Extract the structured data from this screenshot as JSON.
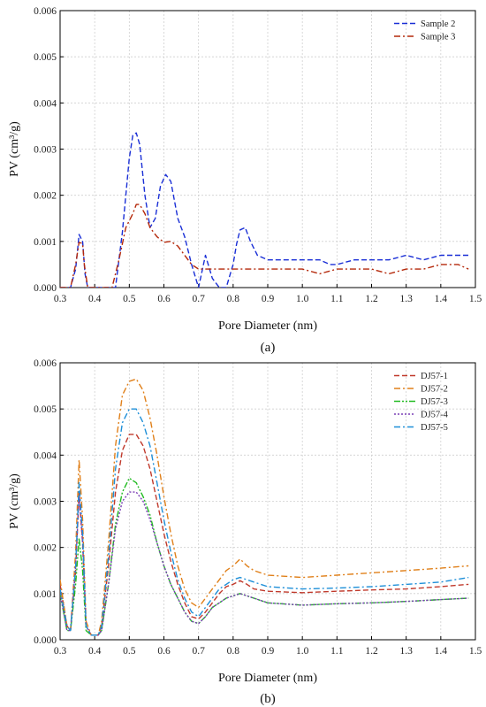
{
  "chart_data": [
    {
      "id": "a",
      "type": "line",
      "caption": "(a)",
      "xlabel": "Pore Diameter (nm)",
      "ylabel": "PV (cm³/g)",
      "xlim": [
        0.3,
        1.5
      ],
      "ylim": [
        0,
        0.006
      ],
      "xticks": [
        "0.3",
        "0.4",
        "0.5",
        "0.6",
        "0.7",
        "0.8",
        "0.9",
        "1.0",
        "1.1",
        "1.2",
        "1.3",
        "1.4",
        "1.5"
      ],
      "yticks": [
        "0.000",
        "0.001",
        "0.002",
        "0.003",
        "0.004",
        "0.005",
        "0.006"
      ],
      "grid": true,
      "legend_position": "top-right",
      "series": [
        {
          "name": "Sample 2",
          "color": "#1a2fd6",
          "dash": "dash",
          "x": [
            0.3,
            0.33,
            0.345,
            0.355,
            0.365,
            0.372,
            0.38,
            0.4,
            0.42,
            0.44,
            0.46,
            0.48,
            0.5,
            0.51,
            0.52,
            0.53,
            0.545,
            0.56,
            0.575,
            0.59,
            0.605,
            0.62,
            0.64,
            0.66,
            0.68,
            0.7,
            0.72,
            0.74,
            0.76,
            0.78,
            0.8,
            0.81,
            0.82,
            0.835,
            0.85,
            0.87,
            0.9,
            0.95,
            1.0,
            1.05,
            1.08,
            1.1,
            1.15,
            1.2,
            1.25,
            1.3,
            1.35,
            1.4,
            1.45,
            1.48
          ],
          "y": [
            0,
            0,
            0.0004,
            0.00115,
            0.001,
            0.0003,
            0,
            0,
            0,
            0,
            0,
            0.0012,
            0.0028,
            0.0033,
            0.00335,
            0.0031,
            0.002,
            0.0013,
            0.0015,
            0.0022,
            0.00245,
            0.0023,
            0.0015,
            0.0011,
            0.0005,
            0,
            0.0007,
            0.0002,
            0,
            0,
            0.0005,
            0.00095,
            0.00125,
            0.0013,
            0.001,
            0.0007,
            0.0006,
            0.0006,
            0.0006,
            0.0006,
            0.0005,
            0.0005,
            0.0006,
            0.0006,
            0.0006,
            0.0007,
            0.0006,
            0.0007,
            0.0007,
            0.0007
          ]
        },
        {
          "name": "Sample 3",
          "color": "#b4280a",
          "dash": "dashdot",
          "x": [
            0.3,
            0.33,
            0.345,
            0.355,
            0.365,
            0.37,
            0.38,
            0.4,
            0.42,
            0.44,
            0.45,
            0.47,
            0.49,
            0.51,
            0.52,
            0.53,
            0.545,
            0.56,
            0.58,
            0.6,
            0.62,
            0.64,
            0.66,
            0.68,
            0.7,
            0.72,
            0.75,
            0.8,
            0.85,
            0.9,
            0.95,
            1.0,
            1.05,
            1.1,
            1.15,
            1.2,
            1.25,
            1.3,
            1.35,
            1.4,
            1.45,
            1.48
          ],
          "y": [
            0,
            0,
            0.0005,
            0.00098,
            0.00095,
            0.0005,
            0,
            0,
            0,
            0,
            0,
            0.0006,
            0.0013,
            0.0016,
            0.0018,
            0.0018,
            0.0016,
            0.0013,
            0.0011,
            0.00098,
            0.001,
            0.0009,
            0.0007,
            0.0005,
            0.0004,
            0.0004,
            0.0004,
            0.0004,
            0.0004,
            0.0004,
            0.0004,
            0.0004,
            0.0003,
            0.0004,
            0.0004,
            0.0004,
            0.0003,
            0.0004,
            0.0004,
            0.0005,
            0.0005,
            0.0004
          ]
        }
      ]
    },
    {
      "id": "b",
      "type": "line",
      "caption": "(b)",
      "xlabel": "Pore Diameter (nm)",
      "ylabel": "PV (cm³/g)",
      "xlim": [
        0.3,
        1.5
      ],
      "ylim": [
        0,
        0.006
      ],
      "xticks": [
        "0.3",
        "0.4",
        "0.5",
        "0.6",
        "0.7",
        "0.8",
        "0.9",
        "1.0",
        "1.1",
        "1.2",
        "1.3",
        "1.4",
        "1.5"
      ],
      "yticks": [
        "0.000",
        "0.001",
        "0.002",
        "0.003",
        "0.004",
        "0.005",
        "0.006"
      ],
      "grid": true,
      "legend_position": "top-right",
      "series": [
        {
          "name": "DJ57-1",
          "color": "#c0392b",
          "dash": "dash",
          "x": [
            0.3,
            0.32,
            0.33,
            0.345,
            0.355,
            0.365,
            0.375,
            0.39,
            0.41,
            0.42,
            0.44,
            0.46,
            0.48,
            0.5,
            0.52,
            0.54,
            0.56,
            0.58,
            0.6,
            0.62,
            0.64,
            0.66,
            0.68,
            0.7,
            0.72,
            0.74,
            0.76,
            0.78,
            0.8,
            0.82,
            0.84,
            0.86,
            0.9,
            1.0,
            1.1,
            1.2,
            1.3,
            1.4,
            1.48
          ],
          "y": [
            0.0012,
            0.0003,
            0.0002,
            0.0015,
            0.0032,
            0.0021,
            0.0003,
            0.0001,
            0.0001,
            0.0003,
            0.0016,
            0.0032,
            0.0041,
            0.00445,
            0.00445,
            0.0042,
            0.0037,
            0.003,
            0.0023,
            0.0017,
            0.0012,
            0.0008,
            0.0005,
            0.00045,
            0.0006,
            0.0008,
            0.001,
            0.00115,
            0.0012,
            0.00128,
            0.0012,
            0.0011,
            0.00105,
            0.00102,
            0.00105,
            0.00108,
            0.0011,
            0.00115,
            0.0012
          ]
        },
        {
          "name": "DJ57-2",
          "color": "#e0801a",
          "dash": "dashdot",
          "x": [
            0.3,
            0.32,
            0.33,
            0.345,
            0.355,
            0.365,
            0.375,
            0.39,
            0.41,
            0.42,
            0.44,
            0.46,
            0.48,
            0.5,
            0.52,
            0.54,
            0.56,
            0.58,
            0.6,
            0.62,
            0.64,
            0.66,
            0.68,
            0.7,
            0.72,
            0.74,
            0.76,
            0.78,
            0.8,
            0.82,
            0.84,
            0.86,
            0.9,
            1.0,
            1.1,
            1.2,
            1.3,
            1.4,
            1.48
          ],
          "y": [
            0.0013,
            0.0003,
            0.0002,
            0.0019,
            0.0039,
            0.0026,
            0.0004,
            0.0001,
            0.0001,
            0.0004,
            0.0021,
            0.0042,
            0.0053,
            0.0056,
            0.00565,
            0.0054,
            0.0048,
            0.004,
            0.0031,
            0.0023,
            0.0016,
            0.0011,
            0.0008,
            0.0007,
            0.0009,
            0.0011,
            0.0013,
            0.0015,
            0.0016,
            0.00175,
            0.0016,
            0.0015,
            0.0014,
            0.00135,
            0.0014,
            0.00145,
            0.0015,
            0.00155,
            0.0016
          ]
        },
        {
          "name": "DJ57-3",
          "color": "#22bb22",
          "dash": "dashdotdot",
          "x": [
            0.3,
            0.32,
            0.33,
            0.345,
            0.355,
            0.365,
            0.375,
            0.39,
            0.41,
            0.42,
            0.44,
            0.46,
            0.48,
            0.5,
            0.52,
            0.54,
            0.56,
            0.58,
            0.6,
            0.62,
            0.64,
            0.66,
            0.68,
            0.7,
            0.72,
            0.74,
            0.76,
            0.78,
            0.8,
            0.82,
            0.84,
            0.86,
            0.9,
            1.0,
            1.1,
            1.2,
            1.3,
            1.4,
            1.48
          ],
          "y": [
            0.001,
            0.0002,
            0.0002,
            0.0012,
            0.0022,
            0.0015,
            0.0002,
            0.0001,
            0.0001,
            0.0002,
            0.0012,
            0.0025,
            0.0032,
            0.0035,
            0.0034,
            0.0031,
            0.0027,
            0.0021,
            0.0016,
            0.0012,
            0.0009,
            0.0006,
            0.0004,
            0.00035,
            0.0005,
            0.0007,
            0.0008,
            0.0009,
            0.00095,
            0.001,
            0.00095,
            0.0009,
            0.0008,
            0.00075,
            0.00078,
            0.0008,
            0.00083,
            0.00087,
            0.0009
          ]
        },
        {
          "name": "DJ57-4",
          "color": "#7a3fb5",
          "dash": "dot",
          "x": [
            0.3,
            0.32,
            0.33,
            0.345,
            0.355,
            0.365,
            0.375,
            0.39,
            0.41,
            0.42,
            0.44,
            0.46,
            0.48,
            0.5,
            0.52,
            0.54,
            0.56,
            0.58,
            0.6,
            0.62,
            0.64,
            0.66,
            0.68,
            0.7,
            0.72,
            0.74,
            0.76,
            0.78,
            0.8,
            0.82,
            0.84,
            0.86,
            0.9,
            1.0,
            1.1,
            1.2,
            1.3,
            1.4,
            1.48
          ],
          "y": [
            0.001,
            0.0002,
            0.0002,
            0.0016,
            0.0031,
            0.0021,
            0.0003,
            0.0001,
            0.0001,
            0.0002,
            0.0012,
            0.0024,
            0.003,
            0.0032,
            0.0032,
            0.003,
            0.0026,
            0.0021,
            0.0016,
            0.0012,
            0.0009,
            0.0006,
            0.0004,
            0.00035,
            0.0005,
            0.0007,
            0.0008,
            0.0009,
            0.00095,
            0.001,
            0.00095,
            0.0009,
            0.0008,
            0.00075,
            0.00078,
            0.0008,
            0.00083,
            0.00087,
            0.0009
          ]
        },
        {
          "name": "DJ57-5",
          "color": "#1e8fd8",
          "dash": "dashdot",
          "x": [
            0.3,
            0.32,
            0.33,
            0.345,
            0.355,
            0.365,
            0.375,
            0.39,
            0.41,
            0.42,
            0.44,
            0.46,
            0.48,
            0.5,
            0.52,
            0.54,
            0.56,
            0.58,
            0.6,
            0.62,
            0.64,
            0.66,
            0.68,
            0.7,
            0.72,
            0.74,
            0.76,
            0.78,
            0.8,
            0.82,
            0.84,
            0.86,
            0.9,
            1.0,
            1.1,
            1.2,
            1.3,
            1.4,
            1.48
          ],
          "y": [
            0.0011,
            0.0003,
            0.0002,
            0.0016,
            0.0034,
            0.0023,
            0.0003,
            0.0001,
            0.0001,
            0.0003,
            0.0018,
            0.0037,
            0.0047,
            0.005,
            0.005,
            0.0047,
            0.0042,
            0.0034,
            0.0026,
            0.0019,
            0.0013,
            0.0009,
            0.0006,
            0.0005,
            0.0007,
            0.0009,
            0.0011,
            0.0012,
            0.0013,
            0.00135,
            0.0013,
            0.00125,
            0.00115,
            0.0011,
            0.00112,
            0.00115,
            0.0012,
            0.00125,
            0.00135
          ]
        }
      ]
    }
  ]
}
